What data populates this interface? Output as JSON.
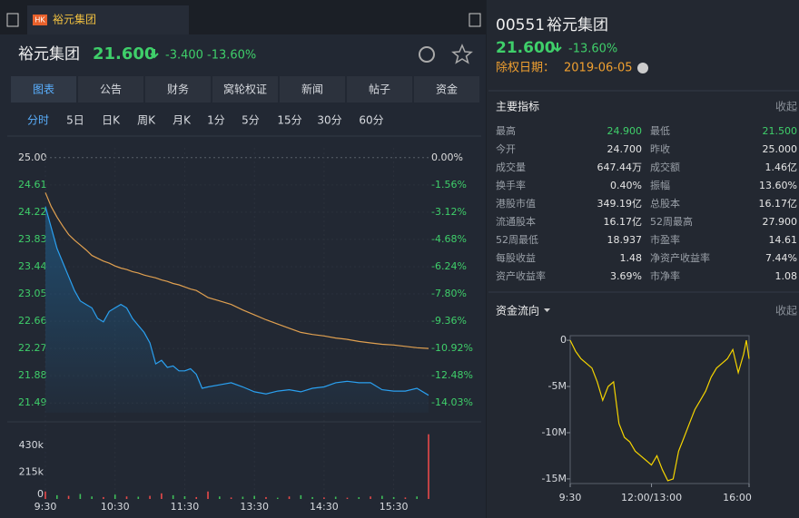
{
  "window": {
    "badge": "HK",
    "tab": "裕元集团"
  },
  "quote": {
    "name": "裕元集团",
    "price": "21.600",
    "change": "-3.400",
    "change_pct": "-13.60%"
  },
  "tabs": [
    "图表",
    "公告",
    "财务",
    "窝轮权证",
    "新闻",
    "帖子",
    "资金"
  ],
  "periods": [
    "分时",
    "5日",
    "日K",
    "周K",
    "月K",
    "1分",
    "5分",
    "15分",
    "30分",
    "60分"
  ],
  "price_chart": {
    "type": "line",
    "x": [
      0,
      5,
      10,
      15,
      20,
      25,
      30,
      35,
      40,
      45,
      50,
      55,
      60,
      65,
      70,
      75,
      80,
      85,
      90,
      95,
      100,
      105,
      110,
      115,
      120,
      125,
      130,
      135,
      140,
      150,
      160,
      170,
      180,
      190,
      200,
      210,
      220,
      230,
      240,
      250,
      260,
      270,
      280,
      290,
      300,
      310,
      320,
      330
    ],
    "series": [
      {
        "color": "#2aa0f0",
        "values": [
          24.3,
          24.0,
          23.7,
          23.5,
          23.3,
          23.1,
          22.95,
          22.9,
          22.85,
          22.7,
          22.65,
          22.8,
          22.85,
          22.9,
          22.85,
          22.7,
          22.6,
          22.5,
          22.35,
          22.05,
          22.1,
          22.0,
          22.02,
          21.95,
          21.95,
          21.98,
          21.9,
          21.7,
          21.72,
          21.75,
          21.78,
          21.72,
          21.65,
          21.62,
          21.66,
          21.68,
          21.65,
          21.7,
          21.72,
          21.78,
          21.8,
          21.78,
          21.78,
          21.68,
          21.66,
          21.66,
          21.7,
          21.6
        ]
      },
      {
        "color": "#e0a050",
        "values": [
          24.5,
          24.3,
          24.15,
          24.02,
          23.9,
          23.82,
          23.75,
          23.68,
          23.6,
          23.56,
          23.52,
          23.49,
          23.45,
          23.42,
          23.4,
          23.37,
          23.35,
          23.32,
          23.3,
          23.28,
          23.25,
          23.23,
          23.2,
          23.18,
          23.15,
          23.12,
          23.1,
          23.05,
          23.0,
          22.95,
          22.9,
          22.82,
          22.75,
          22.68,
          22.62,
          22.56,
          22.5,
          22.47,
          22.45,
          22.42,
          22.4,
          22.37,
          22.35,
          22.33,
          22.32,
          22.3,
          22.28,
          22.27
        ]
      }
    ],
    "ylim": [
      21.35,
      25.14
    ],
    "yticks": [
      {
        "value": 25,
        "label": "25.00"
      },
      {
        "value": 24.61,
        "label": "24.61"
      },
      {
        "value": 24.22,
        "label": "24.22"
      },
      {
        "value": 23.83,
        "label": "23.83"
      },
      {
        "value": 23.44,
        "label": "23.44"
      },
      {
        "value": 23.05,
        "label": "23.05"
      },
      {
        "value": 22.66,
        "label": "22.66"
      },
      {
        "value": 22.27,
        "label": "22.27"
      },
      {
        "value": 21.88,
        "label": "21.88"
      },
      {
        "value": 21.49,
        "label": "21.49"
      }
    ],
    "y2lim": [
      -14.6,
      0.56
    ],
    "y2ticks": [
      {
        "value": 0,
        "label": "0.00%"
      },
      {
        "value": -1.56,
        "label": "-1.56%"
      },
      {
        "value": -3.12,
        "label": "-3.12%"
      },
      {
        "value": -4.68,
        "label": "-4.68%"
      },
      {
        "value": -6.24,
        "label": "-6.24%"
      },
      {
        "value": -7.8,
        "label": "-7.80%"
      },
      {
        "value": -9.36,
        "label": "-9.36%"
      },
      {
        "value": -10.92,
        "label": "-10.92%"
      },
      {
        "value": -12.48,
        "label": "-12.48%"
      },
      {
        "value": -14.03,
        "label": "-14.03%"
      }
    ],
    "xlim": [
      0,
      330
    ],
    "xticks": [
      {
        "value": 0,
        "label": "9:30"
      },
      {
        "value": 60,
        "label": "10:30"
      },
      {
        "value": 120,
        "label": "11:30"
      },
      {
        "value": 180,
        "label": "13:30"
      },
      {
        "value": 240,
        "label": "14:30"
      },
      {
        "value": 300,
        "label": "15:30"
      }
    ]
  },
  "volume_chart": {
    "type": "bar",
    "x": [
      0,
      10,
      20,
      30,
      40,
      50,
      60,
      70,
      80,
      90,
      100,
      110,
      120,
      130,
      140,
      150,
      160,
      170,
      180,
      190,
      200,
      210,
      220,
      230,
      240,
      250,
      260,
      270,
      280,
      290,
      300,
      310,
      320,
      330
    ],
    "values": [
      60000,
      30000,
      25000,
      40000,
      20000,
      15000,
      35000,
      20000,
      18000,
      25000,
      45000,
      30000,
      22000,
      15000,
      60000,
      20000,
      12000,
      18000,
      25000,
      15000,
      10000,
      20000,
      30000,
      15000,
      12000,
      18000,
      10000,
      14000,
      20000,
      25000,
      15000,
      12000,
      20000,
      520000
    ],
    "colors": [
      "#e84a4a",
      "#3fbf5a",
      "#e84a4a",
      "#3fbf5a",
      "#3fbf5a",
      "#e84a4a",
      "#3fbf5a",
      "#e84a4a",
      "#3fbf5a",
      "#e84a4a",
      "#e84a4a",
      "#3fbf5a",
      "#3fbf5a",
      "#e84a4a",
      "#e84a4a",
      "#3fbf5a",
      "#e84a4a",
      "#3fbf5a",
      "#3fbf5a",
      "#e84a4a",
      "#3fbf5a",
      "#e84a4a",
      "#3fbf5a",
      "#3fbf5a",
      "#e84a4a",
      "#3fbf5a",
      "#e84a4a",
      "#3fbf5a",
      "#e84a4a",
      "#3fbf5a",
      "#3fbf5a",
      "#e84a4a",
      "#3fbf5a",
      "#e84a4a"
    ],
    "xlim": [
      0,
      330
    ],
    "ylim": [
      0,
      525000
    ],
    "yticks": [
      {
        "value": 430000,
        "label": "430k"
      },
      {
        "value": 215000,
        "label": "215k"
      },
      0
    ]
  },
  "panel": {
    "code": "00551",
    "name": "裕元集团",
    "price": "21.600",
    "change_pct": "-13.60%",
    "ex_label": "除权日期：",
    "ex_date": "2019-06-05"
  },
  "metrics": {
    "title": "主要指标",
    "toggle": "收起",
    "rows": [
      [
        "最高",
        "24.900",
        "最低",
        "21.500"
      ],
      [
        "今开",
        "24.700",
        "昨收",
        "25.000"
      ],
      [
        "成交量",
        "647.44万",
        "成交额",
        "1.46亿"
      ],
      [
        "换手率",
        "0.40%",
        "振幅",
        "13.60%"
      ],
      [
        "港股市值",
        "349.19亿",
        "总股本",
        "16.17亿"
      ],
      [
        "流通股本",
        "16.17亿",
        "52周最高",
        "27.900"
      ],
      [
        "52周最低",
        "18.937",
        "市盈率",
        "14.61"
      ],
      [
        "每股收益",
        "1.48",
        "净资产收益率",
        "7.44%"
      ],
      [
        "资产收益率",
        "3.69%",
        "市净率",
        "1.08"
      ]
    ]
  },
  "flow": {
    "title": "资金流向",
    "toggle": "收起",
    "chart": {
      "type": "line",
      "color": "#f5d400",
      "x": [
        0,
        10,
        20,
        30,
        40,
        50,
        60,
        70,
        80,
        90,
        100,
        110,
        120,
        130,
        140,
        150,
        160,
        170,
        180,
        190,
        200,
        210,
        220,
        230,
        240,
        250,
        260,
        270,
        280,
        290,
        300,
        310,
        320,
        325,
        330
      ],
      "values": [
        0,
        -1200000,
        -2000000,
        -2500000,
        -3000000,
        -4500000,
        -6500000,
        -5000000,
        -4500000,
        -9000000,
        -10500000,
        -11000000,
        -12000000,
        -12500000,
        -13000000,
        -13500000,
        -12500000,
        -14000000,
        -15200000,
        -15000000,
        -12000000,
        -10500000,
        -9000000,
        -7500000,
        -6500000,
        -5500000,
        -4000000,
        -3000000,
        -2500000,
        -2000000,
        -1000000,
        -3500000,
        -1500000,
        0,
        -2000000
      ],
      "xlim": [
        0,
        330
      ],
      "ylim": [
        -15500000,
        500000
      ],
      "yticks": [
        0,
        {
          "value": -5000000,
          "label": "-5M"
        },
        {
          "value": -10000000,
          "label": "-10M"
        },
        {
          "value": -15000000,
          "label": "-15M"
        }
      ],
      "xticks": [
        {
          "value": 0,
          "label": "9:30"
        },
        {
          "value": 150,
          "label": "12:00/13:00"
        },
        {
          "value": 330,
          "label": "16:00"
        }
      ]
    }
  }
}
